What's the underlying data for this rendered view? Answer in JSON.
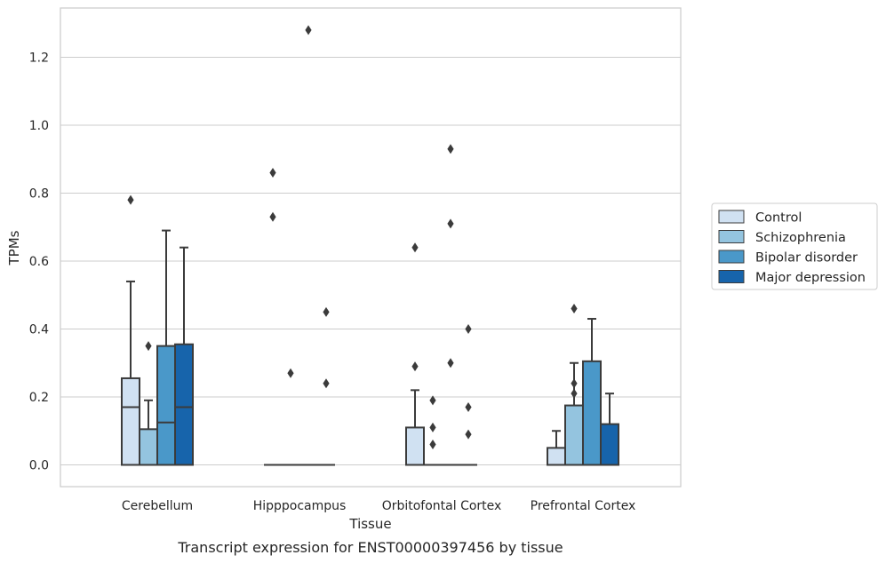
{
  "chart_data": {
    "type": "box",
    "xlabel": "Tissue",
    "ylabel": "TPMs",
    "caption": "Transcript expression for ENST00000397456 by tissue",
    "categories": [
      "Cerebellum",
      "Hipppocampus",
      "Orbitofontal Cortex",
      "Prefrontal Cortex"
    ],
    "ylim": [
      -0.065,
      1.35
    ],
    "yticks": [
      "0.0",
      "0.2",
      "0.4",
      "0.6",
      "0.8",
      "1.0",
      "1.2"
    ],
    "grid": true,
    "legend_position": "right",
    "series": [
      {
        "name": "Control",
        "color": "#d0e1f2",
        "boxes": [
          {
            "q1": 0.0,
            "median": 0.17,
            "q3": 0.255,
            "whisker_low": 0.0,
            "whisker_high": 0.54,
            "outliers": [
              0.78
            ]
          },
          {
            "q1": 0.0,
            "median": 0.0,
            "q3": 0.0,
            "whisker_low": 0.0,
            "whisker_high": 0.0,
            "outliers": [
              0.73,
              0.86
            ]
          },
          {
            "q1": 0.0,
            "median": 0.0,
            "q3": 0.11,
            "whisker_low": 0.0,
            "whisker_high": 0.22,
            "outliers": [
              0.29,
              0.64
            ]
          },
          {
            "q1": 0.0,
            "median": 0.0,
            "q3": 0.05,
            "whisker_low": 0.0,
            "whisker_high": 0.1,
            "outliers": []
          }
        ]
      },
      {
        "name": "Schizophrenia",
        "color": "#94c4df",
        "boxes": [
          {
            "q1": 0.0,
            "median": 0.0,
            "q3": 0.105,
            "whisker_low": 0.0,
            "whisker_high": 0.19,
            "outliers": [
              0.35
            ]
          },
          {
            "q1": 0.0,
            "median": 0.0,
            "q3": 0.0,
            "whisker_low": 0.0,
            "whisker_high": 0.0,
            "outliers": [
              0.27
            ]
          },
          {
            "q1": 0.0,
            "median": 0.0,
            "q3": 0.0,
            "whisker_low": 0.0,
            "whisker_high": 0.0,
            "outliers": [
              0.06,
              0.11,
              0.19
            ]
          },
          {
            "q1": 0.0,
            "median": 0.0,
            "q3": 0.175,
            "whisker_low": 0.0,
            "whisker_high": 0.3,
            "outliers": [
              0.21,
              0.24,
              0.46
            ]
          }
        ]
      },
      {
        "name": "Bipolar disorder",
        "color": "#4a98c9",
        "boxes": [
          {
            "q1": 0.0,
            "median": 0.125,
            "q3": 0.35,
            "whisker_low": 0.0,
            "whisker_high": 0.69,
            "outliers": []
          },
          {
            "q1": 0.0,
            "median": 0.0,
            "q3": 0.0,
            "whisker_low": 0.0,
            "whisker_high": 0.0,
            "outliers": [
              1.28
            ]
          },
          {
            "q1": 0.0,
            "median": 0.0,
            "q3": 0.0,
            "whisker_low": 0.0,
            "whisker_high": 0.0,
            "outliers": [
              0.3,
              0.71,
              0.93
            ]
          },
          {
            "q1": 0.0,
            "median": 0.0,
            "q3": 0.305,
            "whisker_low": 0.0,
            "whisker_high": 0.43,
            "outliers": []
          }
        ]
      },
      {
        "name": "Major depression",
        "color": "#1764ab",
        "boxes": [
          {
            "q1": 0.0,
            "median": 0.17,
            "q3": 0.355,
            "whisker_low": 0.0,
            "whisker_high": 0.64,
            "outliers": []
          },
          {
            "q1": 0.0,
            "median": 0.0,
            "q3": 0.0,
            "whisker_low": 0.0,
            "whisker_high": 0.0,
            "outliers": [
              0.24,
              0.45
            ]
          },
          {
            "q1": 0.0,
            "median": 0.0,
            "q3": 0.0,
            "whisker_low": 0.0,
            "whisker_high": 0.0,
            "outliers": [
              0.09,
              0.17,
              0.4
            ]
          },
          {
            "q1": 0.0,
            "median": 0.0,
            "q3": 0.12,
            "whisker_low": 0.0,
            "whisker_high": 0.21,
            "outliers": []
          }
        ]
      }
    ]
  }
}
